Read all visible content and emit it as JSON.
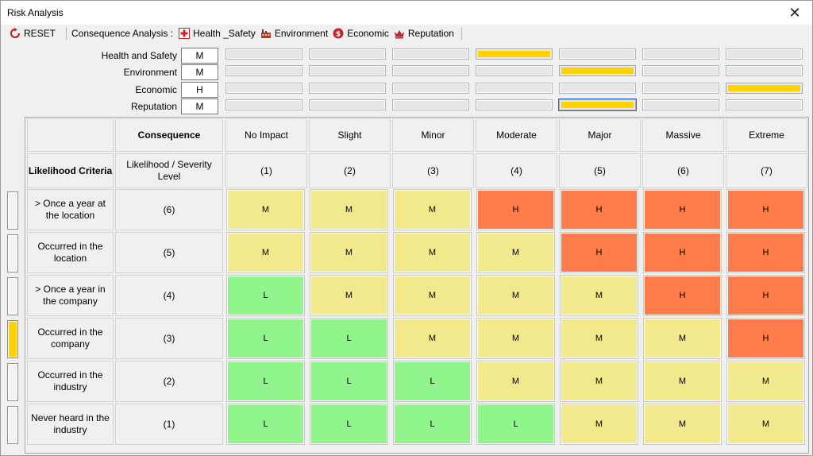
{
  "window": {
    "title": "Risk Analysis",
    "close_glyph": "✕"
  },
  "toolbar": {
    "reset_label": "RESET",
    "consequence_label": "Consequence Analysis :",
    "items": [
      {
        "label": "Health _Safety",
        "icon": "health-safety-icon"
      },
      {
        "label": "Environment",
        "icon": "environment-icon"
      },
      {
        "label": "Economic",
        "icon": "economic-icon"
      },
      {
        "label": "Reputation",
        "icon": "reputation-icon"
      }
    ]
  },
  "selectors": [
    {
      "label": "Health and Safety",
      "value": "M",
      "selected_level": 4
    },
    {
      "label": "Environment",
      "value": "M",
      "selected_level": 5
    },
    {
      "label": "Economic",
      "value": "H",
      "selected_level": 7
    },
    {
      "label": "Reputation",
      "value": "M",
      "selected_level": 5,
      "focused": true
    }
  ],
  "colors": {
    "low": "#8ff58c",
    "medium": "#f2e88c",
    "high": "#ff7b4a",
    "selected": "#ffd200"
  },
  "matrix": {
    "corner_header": "Consequence",
    "likelihood_header": "Likelihood Criteria",
    "severity_header": "Likelihood / Severity Level",
    "consequences": [
      {
        "name": "No Impact",
        "level": "(1)"
      },
      {
        "name": "Slight",
        "level": "(2)"
      },
      {
        "name": "Minor",
        "level": "(3)"
      },
      {
        "name": "Moderate",
        "level": "(4)"
      },
      {
        "name": "Major",
        "level": "(5)"
      },
      {
        "name": "Massive",
        "level": "(6)"
      },
      {
        "name": "Extreme",
        "level": "(7)"
      }
    ],
    "rows": [
      {
        "criteria": "> Once a year at the location",
        "level": "(6)",
        "cells": [
          "M",
          "M",
          "M",
          "H",
          "H",
          "H",
          "H"
        ]
      },
      {
        "criteria": "Occurred in the location",
        "level": "(5)",
        "cells": [
          "M",
          "M",
          "M",
          "M",
          "H",
          "H",
          "H"
        ]
      },
      {
        "criteria": "> Once a year in the company",
        "level": "(4)",
        "cells": [
          "L",
          "M",
          "M",
          "M",
          "M",
          "H",
          "H"
        ]
      },
      {
        "criteria": "Occurred in the company",
        "level": "(3)",
        "cells": [
          "L",
          "L",
          "M",
          "M",
          "M",
          "M",
          "H"
        ]
      },
      {
        "criteria": "Occurred in the industry",
        "level": "(2)",
        "cells": [
          "L",
          "L",
          "L",
          "M",
          "M",
          "M",
          "M"
        ]
      },
      {
        "criteria": "Never heard in the industry",
        "level": "(1)",
        "cells": [
          "L",
          "L",
          "L",
          "L",
          "M",
          "M",
          "M"
        ]
      }
    ],
    "selected_likelihood_row": 3
  }
}
